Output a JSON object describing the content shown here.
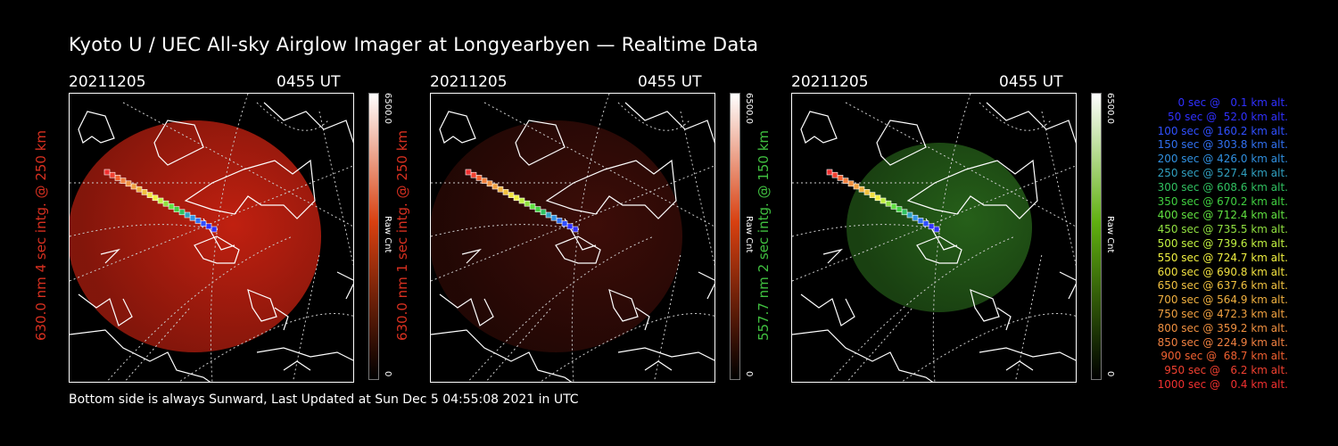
{
  "title": "Kyoto U / UEC All-sky Airglow Imager at Longyearbyen — Realtime Data",
  "footer": "Bottom side is always Sunward, Last Updated at Sun Dec  5 04:55:08 2021 in UTC",
  "panels": [
    {
      "date": "20211205",
      "time": "0455 UT",
      "side_label": "630.0 nm 4 sec intg. @ 250 km",
      "label_color": "#d83020",
      "colorbar": {
        "max": "6500.0",
        "unit": "Raw Cnt",
        "min": "0",
        "color": "#d84010"
      },
      "glow_color": "#c02010",
      "glow_level": 0.85
    },
    {
      "date": "20211205",
      "time": "0455 UT",
      "side_label": "630.0 nm 1 sec intg. @ 250 km",
      "label_color": "#d83020",
      "colorbar": {
        "max": "6500.0",
        "unit": "Raw Cnt",
        "min": "0",
        "color": "#d84010"
      },
      "glow_color": "#7a1a10",
      "glow_level": 0.35
    },
    {
      "date": "20211205",
      "time": "0455 UT",
      "side_label": "557.7 nm 2 sec intg. @ 150 km",
      "label_color": "#40c040",
      "colorbar": {
        "max": "6500.0",
        "unit": "Raw Cnt",
        "min": "0",
        "color": "#60b010"
      },
      "glow_color": "#2a6a1c",
      "glow_level": 0.75
    }
  ],
  "legend": [
    {
      "text": "   0 sec @   0.1 km alt.",
      "color": "#3030ff"
    },
    {
      "text": "  50 sec @  52.0 km alt.",
      "color": "#3030ff"
    },
    {
      "text": " 100 sec @ 160.2 km alt.",
      "color": "#3050ff"
    },
    {
      "text": " 150 sec @ 303.8 km alt.",
      "color": "#3070f0"
    },
    {
      "text": " 200 sec @ 426.0 km alt.",
      "color": "#3090e0"
    },
    {
      "text": " 250 sec @ 527.4 km alt.",
      "color": "#30a0c0"
    },
    {
      "text": " 300 sec @ 608.6 km alt.",
      "color": "#30c060"
    },
    {
      "text": " 350 sec @ 670.2 km alt.",
      "color": "#40d040"
    },
    {
      "text": " 400 sec @ 712.4 km alt.",
      "color": "#60e040"
    },
    {
      "text": " 450 sec @ 735.5 km alt.",
      "color": "#90e040"
    },
    {
      "text": " 500 sec @ 739.6 km alt.",
      "color": "#c0f040"
    },
    {
      "text": " 550 sec @ 724.7 km alt.",
      "color": "#f0f040"
    },
    {
      "text": " 600 sec @ 690.8 km alt.",
      "color": "#f0e040"
    },
    {
      "text": " 650 sec @ 637.6 km alt.",
      "color": "#f0c040"
    },
    {
      "text": " 700 sec @ 564.9 km alt.",
      "color": "#f0b040"
    },
    {
      "text": " 750 sec @ 472.3 km alt.",
      "color": "#f0a040"
    },
    {
      "text": " 800 sec @ 359.2 km alt.",
      "color": "#f09040"
    },
    {
      "text": " 850 sec @ 224.9 km alt.",
      "color": "#f08040"
    },
    {
      "text": " 900 sec @  68.7 km alt.",
      "color": "#f06030"
    },
    {
      "text": " 950 sec @   6.2 km alt.",
      "color": "#f04030"
    },
    {
      "text": "1000 sec @   0.4 km alt.",
      "color": "#f03030"
    }
  ]
}
